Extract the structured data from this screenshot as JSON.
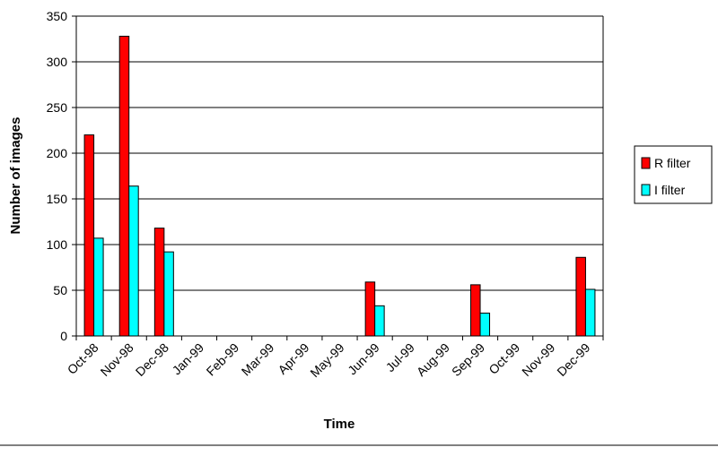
{
  "chart_data": {
    "type": "bar",
    "x_label": "Time",
    "y_label": "Number of images",
    "categories": [
      "Oct-98",
      "Nov-98",
      "Dec-98",
      "Jan-99",
      "Feb-99",
      "Mar-99",
      "Apr-99",
      "May-99",
      "Jun-99",
      "Jul-99",
      "Aug-99",
      "Sep-99",
      "Oct-99",
      "Nov-99",
      "Dec-99"
    ],
    "series": [
      {
        "name": "R filter",
        "color": "#ff0000",
        "values": [
          220,
          328,
          118,
          0,
          0,
          0,
          0,
          0,
          59,
          0,
          0,
          56,
          0,
          0,
          86
        ]
      },
      {
        "name": "I filter",
        "color": "#00ffff",
        "values": [
          107,
          164,
          92,
          0,
          0,
          0,
          0,
          0,
          33,
          0,
          0,
          25,
          0,
          0,
          51
        ]
      }
    ],
    "ylim": [
      0,
      350
    ],
    "yticks": [
      0,
      50,
      100,
      150,
      200,
      250,
      300,
      350
    ],
    "grid": true,
    "legend": "right"
  }
}
